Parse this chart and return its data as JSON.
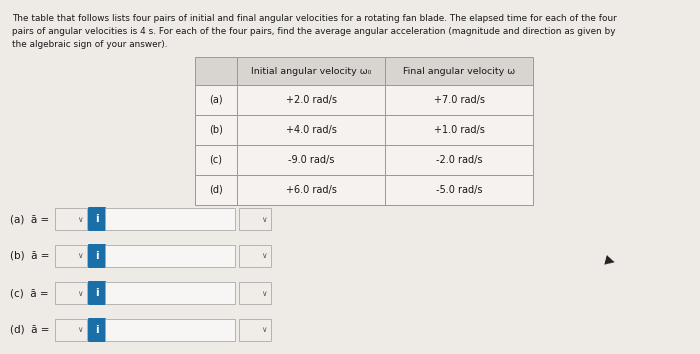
{
  "background_color": "#eeeae6",
  "text_color": "#1a1a1a",
  "paragraph_line1": "The table that follows lists four pairs of initial and final angular velocities for a rotating fan blade. The elapsed time for each of the four",
  "paragraph_line2": "pairs of angular velocities is 4 s. For each of the four pairs, find the average angular acceleration (magnitude and direction as given by",
  "paragraph_line3": "the algebraic sign of your answer).",
  "table_header": [
    "",
    "Initial angular velocity ω₀",
    "Final angular velocity ω"
  ],
  "table_rows": [
    [
      "(a)",
      "+2.0 rad/s",
      "+7.0 rad/s"
    ],
    [
      "(b)",
      "+4.0 rad/s",
      "+1.0 rad/s"
    ],
    [
      "(c)",
      "-9.0 rad/s",
      "-2.0 rad/s"
    ],
    [
      "(d)",
      "+6.0 rad/s",
      "-5.0 rad/s"
    ]
  ],
  "answer_labels": [
    "(a)",
    "(b)",
    "(c)",
    "(d)"
  ],
  "input_box_color": "#f8f6f4",
  "blue_btn_color": "#1a6fa8",
  "dropdown_color": "#f0ede9",
  "table_border_color": "#999999",
  "header_bg": "#d8d4d0",
  "row_bg": "#f5f2ef"
}
